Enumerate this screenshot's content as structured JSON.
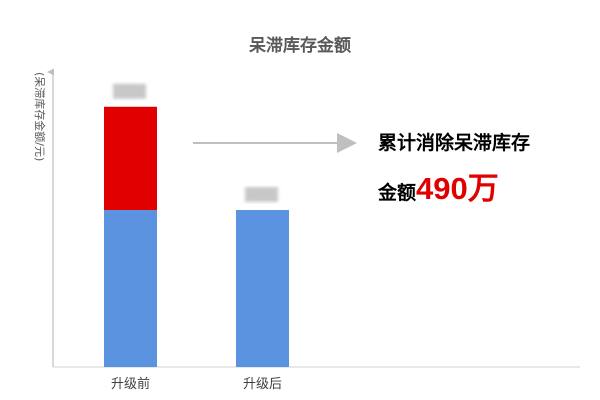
{
  "chart_data": {
    "type": "bar",
    "stacked": true,
    "title": "呆滞库存金额",
    "ylabel": "(呆滞库存金额/元)",
    "xlabel": "",
    "categories": [
      "升级前",
      "升级后"
    ],
    "series": [
      {
        "values": [
          745,
          745
        ],
        "color": "#5b93e0"
      },
      {
        "values": [
          490,
          0
        ],
        "color": "#e00000"
      }
    ],
    "ylim": [
      0,
      1400
    ],
    "value_labels_blurred": true,
    "grid": false,
    "annotation": {
      "line1": "累计消除呆滞库存",
      "line2_prefix": "金额",
      "line2_value": "490万",
      "value_color": "#e00000"
    }
  }
}
